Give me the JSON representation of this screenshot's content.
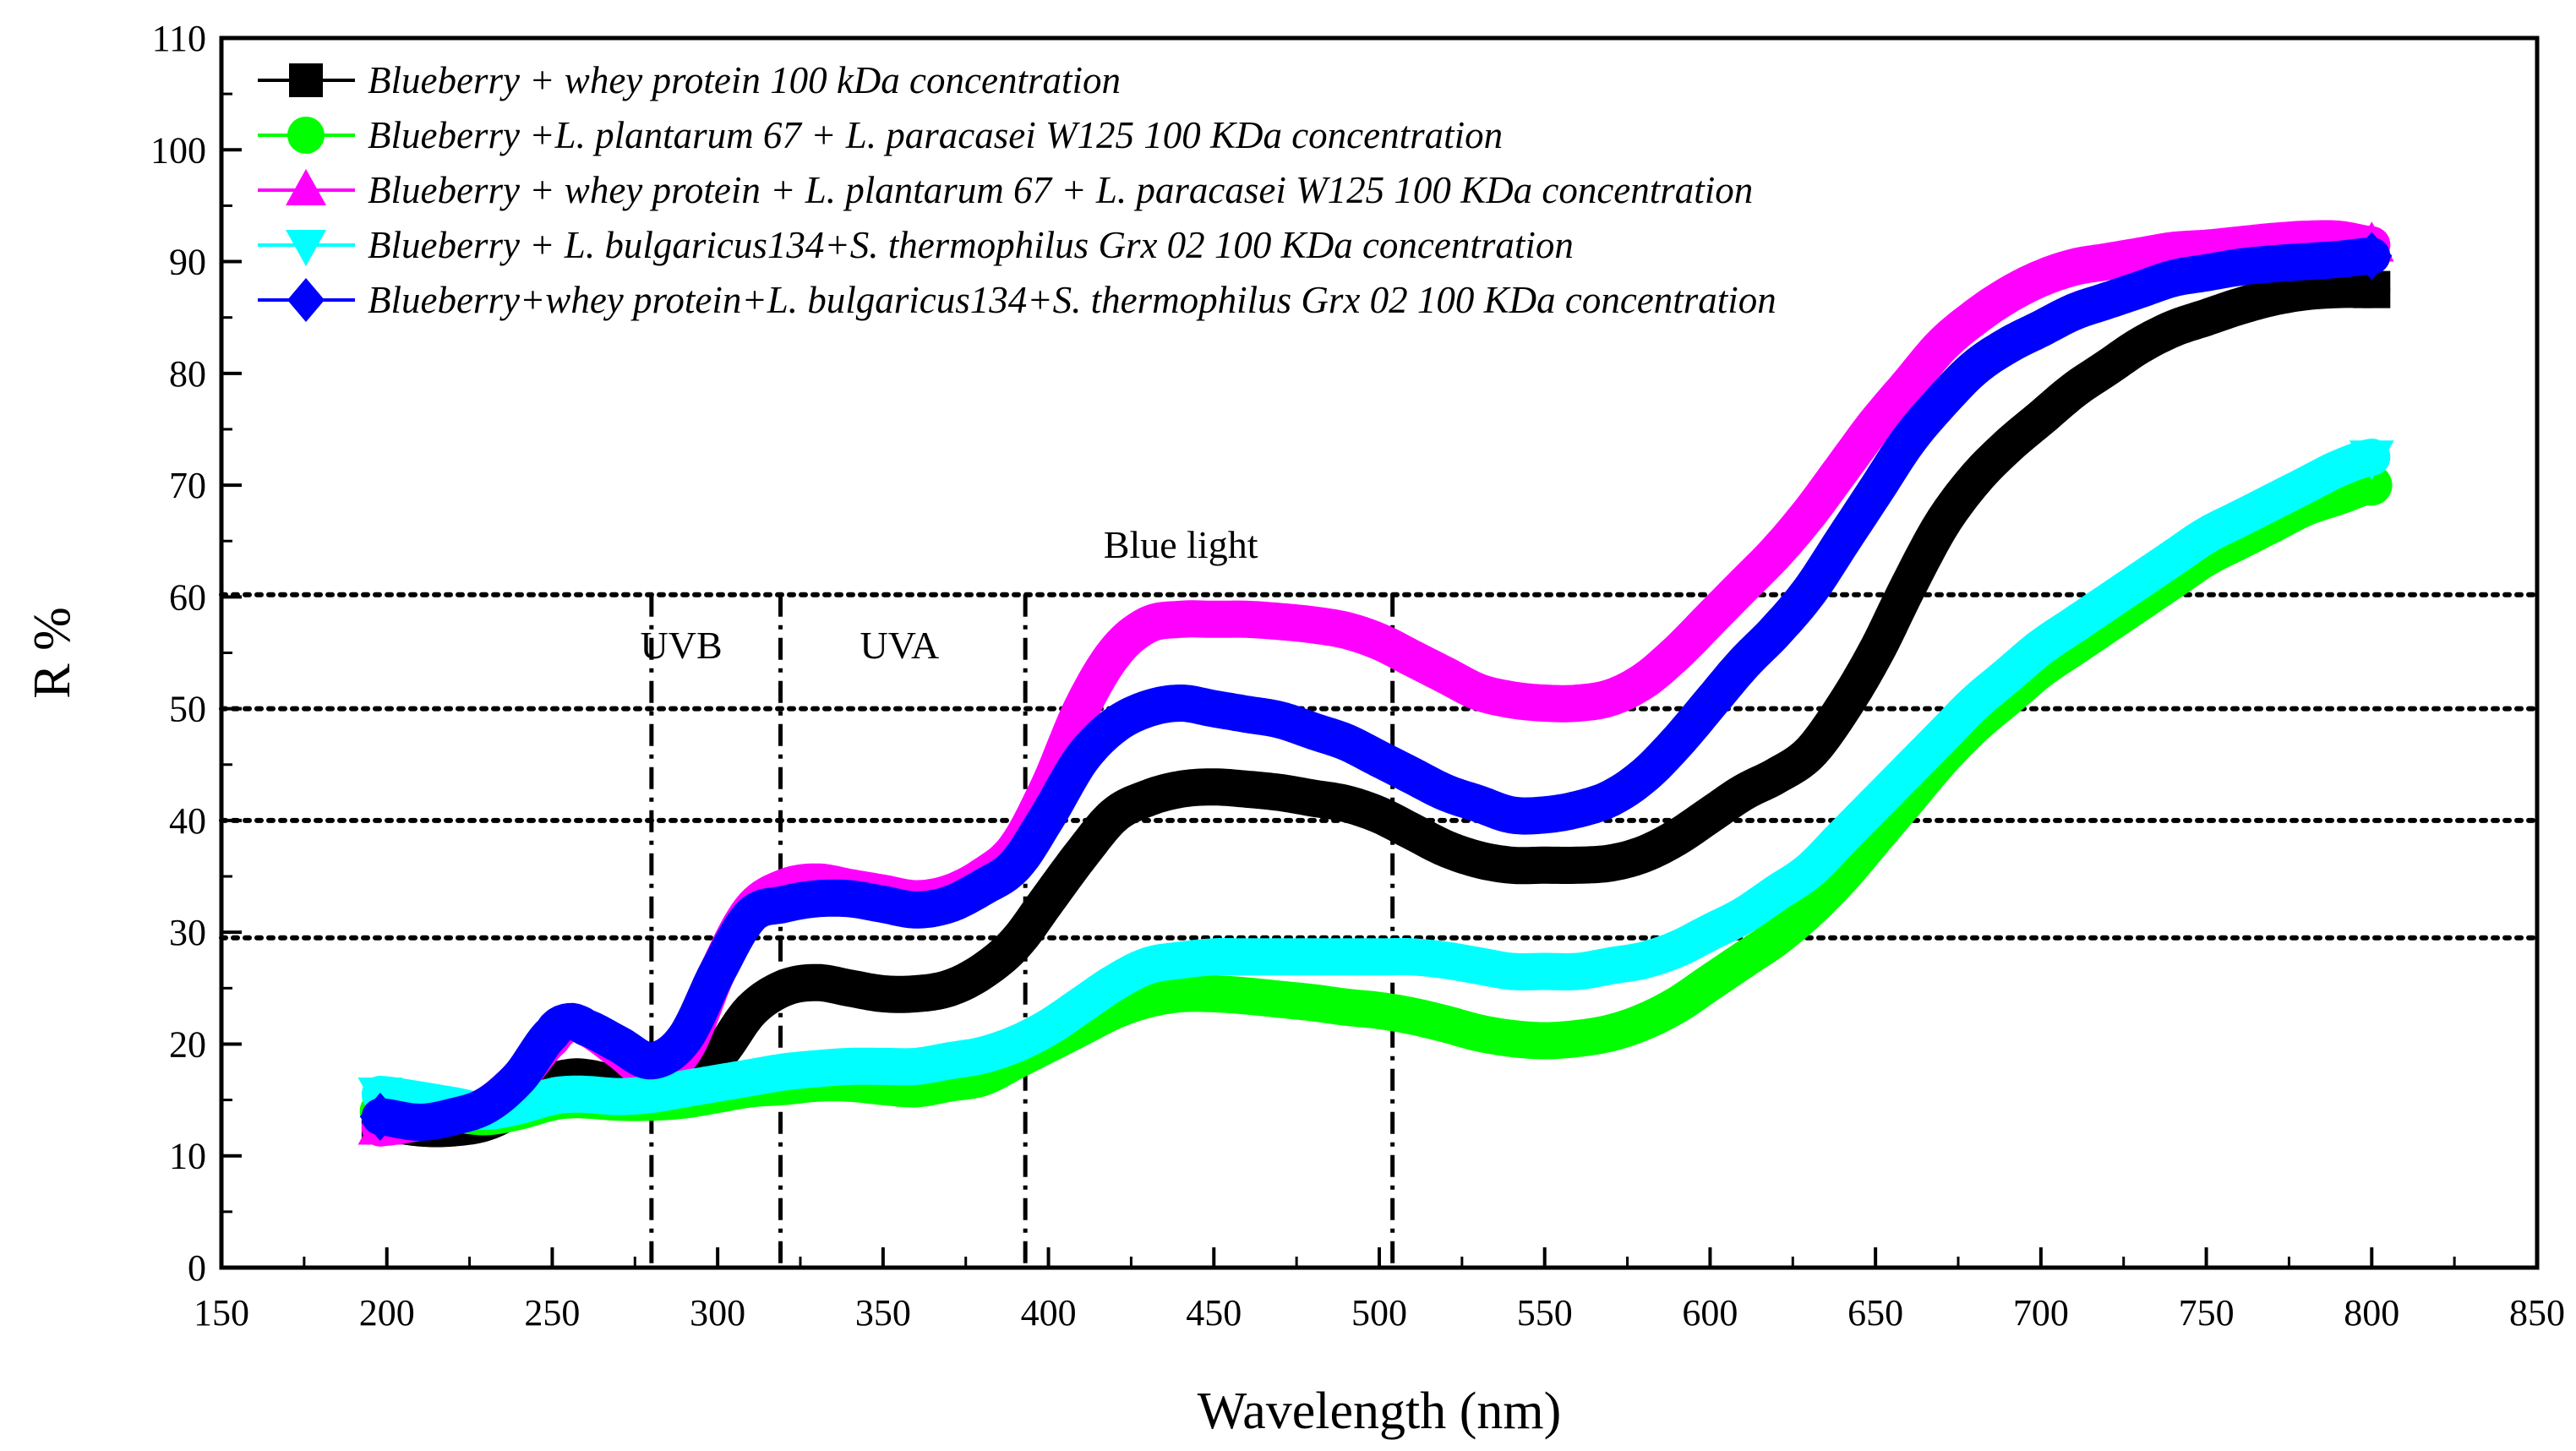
{
  "chart_data": {
    "type": "line",
    "xlabel": "Wavelength (nm)",
    "ylabel": "R %",
    "xlim": [
      150,
      850
    ],
    "ylim": [
      0,
      110
    ],
    "x_ticks": [
      150,
      200,
      250,
      300,
      350,
      400,
      450,
      500,
      550,
      600,
      650,
      700,
      750,
      800,
      850
    ],
    "y_ticks": [
      0,
      10,
      20,
      30,
      40,
      50,
      60,
      70,
      80,
      90,
      100,
      110
    ],
    "grid": false,
    "legend_position": "top-left",
    "x": [
      198,
      210,
      220,
      230,
      240,
      250,
      255,
      260,
      270,
      280,
      290,
      300,
      310,
      320,
      330,
      340,
      350,
      360,
      370,
      380,
      390,
      400,
      410,
      420,
      430,
      440,
      450,
      460,
      470,
      480,
      490,
      500,
      510,
      520,
      530,
      540,
      550,
      560,
      570,
      580,
      590,
      600,
      610,
      620,
      630,
      640,
      650,
      660,
      670,
      680,
      690,
      700,
      710,
      720,
      730,
      740,
      750,
      760,
      770,
      780,
      790,
      800
    ],
    "series": [
      {
        "name": "Blueberry + whey protein 100 kDa concentration",
        "color": "#000000",
        "marker": "square",
        "values": [
          13,
          12.5,
          12.5,
          13,
          14.5,
          16.5,
          17,
          17,
          16.5,
          17,
          17.5,
          19,
          23,
          25,
          25.5,
          25,
          24.5,
          24.5,
          25,
          26.5,
          29,
          33,
          37,
          40.5,
          42,
          42.8,
          43,
          42.8,
          42.5,
          42,
          41.5,
          40.5,
          39,
          37.5,
          36.5,
          36,
          36,
          36,
          36.2,
          37,
          38.5,
          40.5,
          42.5,
          44,
          46,
          50,
          55,
          61,
          66.5,
          70.5,
          73.5,
          76,
          78.5,
          80.5,
          82.5,
          84,
          85,
          86,
          86.8,
          87.3,
          87.5,
          87.5
        ]
      },
      {
        "name": "Blueberry +L. plantarum 67 + L. paracasei W125 100 KDa concentration",
        "color": "#00ff00",
        "marker": "circle",
        "values": [
          14,
          14,
          13.8,
          13.5,
          14,
          14.8,
          15,
          15,
          14.8,
          14.8,
          15,
          15.5,
          16,
          16.2,
          16.5,
          16.5,
          16.2,
          16,
          16.5,
          17,
          18.5,
          20,
          21.5,
          23,
          24,
          24.5,
          24.5,
          24.3,
          24,
          23.7,
          23.3,
          23,
          22.5,
          21.8,
          21,
          20.5,
          20.3,
          20.5,
          21,
          22,
          23.5,
          25.5,
          27.5,
          29.5,
          32,
          35,
          38.5,
          42,
          45.5,
          48.5,
          51,
          53.5,
          55.5,
          57.5,
          59.5,
          61.5,
          63.5,
          65,
          66.5,
          68,
          69,
          70
        ]
      },
      {
        "name": "Blueberry + whey protein + L. plantarum 67 + L. paracasei W125 100 KDa concentration",
        "color": "#ff00ff",
        "marker": "triangle-up",
        "values": [
          12.5,
          13,
          13.5,
          14.5,
          17,
          20.5,
          21.8,
          21.5,
          19.5,
          17.5,
          19.5,
          26.5,
          32,
          34,
          34.5,
          34,
          33.5,
          33,
          33.5,
          35,
          37.5,
          43,
          50,
          55,
          57.5,
          58,
          58,
          58,
          57.8,
          57.5,
          57,
          56,
          54.5,
          53,
          51.5,
          50.8,
          50.5,
          50.5,
          51,
          52.5,
          55,
          58,
          61,
          64,
          67.5,
          71.5,
          75.5,
          79,
          82.5,
          85,
          87,
          88.5,
          89.5,
          90,
          90.5,
          91,
          91.2,
          91.5,
          91.8,
          92,
          92,
          91.5
        ]
      },
      {
        "name": "Blueberry + L. bulgaricus134+S. thermophilus Grx 02 100 KDa concentration",
        "color": "#00ffff",
        "marker": "triangle-down",
        "values": [
          15.5,
          15,
          14.5,
          14,
          14.5,
          15.3,
          15.5,
          15.5,
          15.3,
          15.5,
          16,
          16.5,
          17,
          17.5,
          17.8,
          18,
          18,
          18,
          18.5,
          19,
          20,
          21.5,
          23.5,
          25.5,
          27,
          27.5,
          27.8,
          27.8,
          27.8,
          27.8,
          27.8,
          27.8,
          27.8,
          27.5,
          27,
          26.5,
          26.5,
          26.5,
          27,
          27.5,
          28.5,
          30,
          31.5,
          33.5,
          35.5,
          38.5,
          41.5,
          44.5,
          47.5,
          50.5,
          53,
          55.5,
          57.5,
          59.5,
          61.5,
          63.5,
          65.5,
          67,
          68.5,
          70,
          71.5,
          72.5
        ]
      },
      {
        "name": "Blueberry+whey protein+L. bulgaricus134+S. thermophilus Grx 02 100 KDa concentration",
        "color": "#0000ff",
        "marker": "diamond",
        "values": [
          13.5,
          13,
          13.5,
          14.5,
          17,
          21,
          22,
          21.5,
          20,
          18.5,
          20.5,
          26.5,
          31.5,
          32.5,
          33,
          33,
          32.5,
          32,
          32.5,
          34,
          36,
          40.5,
          45.5,
          48.5,
          50,
          50.5,
          50,
          49.5,
          49,
          48,
          47,
          45.5,
          44,
          42.5,
          41.5,
          40.5,
          40.5,
          41,
          42,
          44,
          47,
          50.5,
          54,
          57,
          60.5,
          65,
          69.5,
          74,
          77.5,
          80.5,
          82.5,
          84,
          85.5,
          86.5,
          87.5,
          88.5,
          89,
          89.5,
          89.8,
          90,
          90.2,
          90.5
        ]
      }
    ],
    "reference_hlines": [
      29.5,
      40,
      50,
      60.2
    ],
    "reference_vlines": [
      280,
      319,
      393,
      504
    ],
    "annotations": [
      {
        "text": "UVB",
        "x": 289,
        "y": 54.5
      },
      {
        "text": "UVA",
        "x": 355,
        "y": 54.5
      },
      {
        "text": "Blue light",
        "x": 440,
        "y": 63.5
      }
    ]
  }
}
